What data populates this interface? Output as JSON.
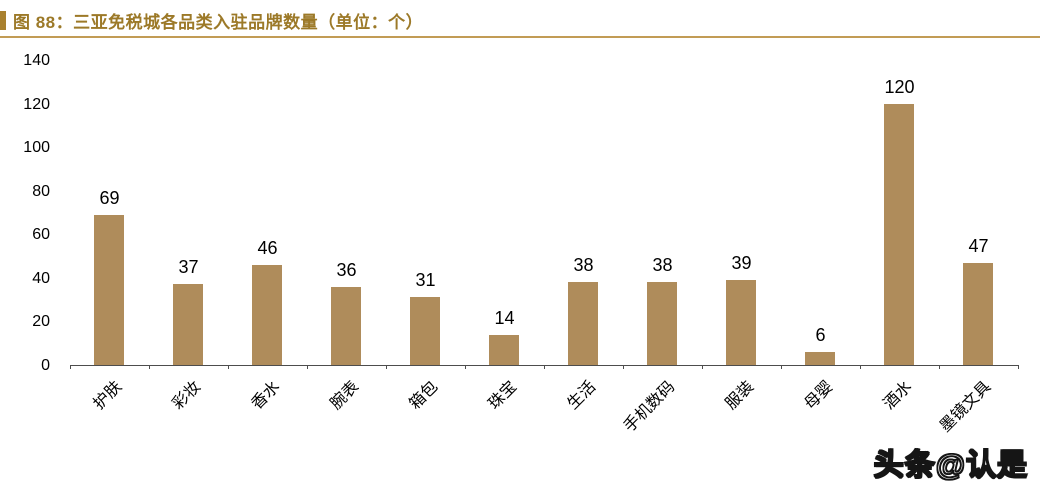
{
  "header": {
    "title": "图 88：三亚免税城各品类入驻品牌数量（单位：个）"
  },
  "colors": {
    "title_gold": "#9c7928",
    "divider_gold": "#c29c55",
    "bar": "#af8c5b"
  },
  "watermark": "头条@认是",
  "chart_data": {
    "type": "bar",
    "title": "三亚免税城各品类入驻品牌数量（单位：个）",
    "categories": [
      "护肤",
      "彩妆",
      "香水",
      "腕表",
      "箱包",
      "珠宝",
      "生活",
      "手机数码",
      "服装",
      "母婴",
      "酒水",
      "墨镜文具"
    ],
    "values": [
      69,
      37,
      46,
      36,
      31,
      14,
      38,
      38,
      39,
      6,
      120,
      47
    ],
    "xlabel": "",
    "ylabel": "",
    "ylim": [
      0,
      140
    ],
    "yticks": [
      0,
      20,
      40,
      60,
      80,
      100,
      120,
      140
    ],
    "grid": false,
    "legend": false,
    "bar_color": "#af8c5b",
    "value_labels": true,
    "x_label_rotation_deg": 45
  }
}
